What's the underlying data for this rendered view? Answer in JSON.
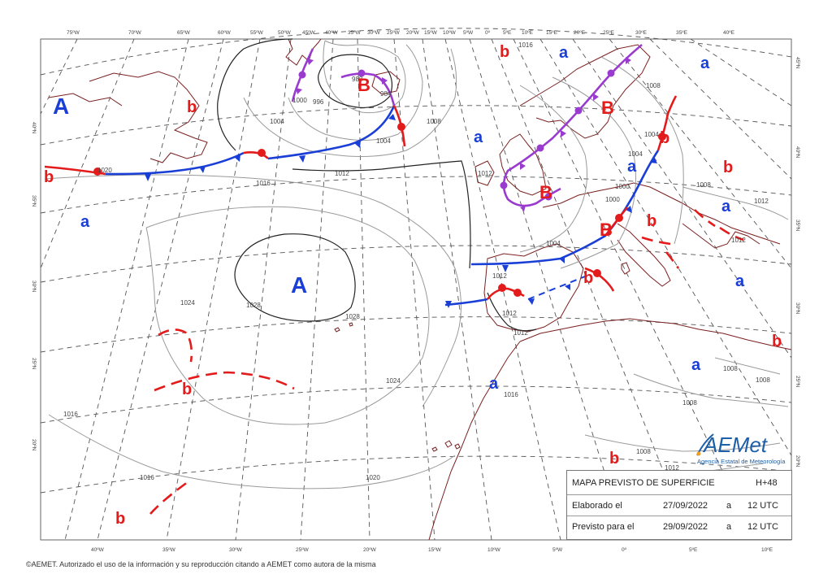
{
  "colors": {
    "high": "#1a3fd6",
    "low": "#e31b1b",
    "cold_front": "#1a3fd6",
    "warm_front": "#e31b1b",
    "occluded": "#9a3bd0",
    "coast": "#7a2020",
    "isobar": "#9a9a9a",
    "isobar_main": "#222222",
    "grid": "#444444"
  },
  "top_lon_labels": [
    "75ºW",
    "70ºW",
    "65ºW",
    "60ºW",
    "55ºW",
    "50ºW",
    "45ºW",
    "40ºW",
    "35ºW",
    "30ºW",
    "25ºW",
    "20ºW",
    "15ºW",
    "10ºW",
    "5ºW",
    "0º",
    "5ºE",
    "10ºE",
    "15ºE",
    "20ºE",
    "25ºE",
    "30ºE",
    "35ºE",
    "40ºE"
  ],
  "bottom_lon_labels": [
    "40ºW",
    "35ºW",
    "30ºW",
    "25ºW",
    "20ºW",
    "15ºW",
    "10ºW",
    "5ºW",
    "0º",
    "5ºE",
    "10ºE"
  ],
  "left_lat_labels": [
    "40ºN",
    "35ºN",
    "30ºN",
    "25ºN",
    "20ºN"
  ],
  "right_lat_labels": [
    "45ºN",
    "40ºN",
    "35ºN",
    "30ºN",
    "25ºN",
    "20ºN"
  ],
  "pressure_centers": [
    {
      "kind": "A",
      "type": "high",
      "size": "large"
    },
    {
      "kind": "A",
      "type": "high",
      "size": "large"
    },
    {
      "kind": "B",
      "type": "low",
      "size": "large"
    },
    {
      "kind": "B",
      "type": "low",
      "size": "large"
    },
    {
      "kind": "B",
      "type": "low",
      "size": "large"
    },
    {
      "kind": "B",
      "type": "low",
      "size": "large"
    },
    {
      "kind": "b",
      "type": "low",
      "size": "small"
    },
    {
      "kind": "b",
      "type": "low",
      "size": "small"
    },
    {
      "kind": "b",
      "type": "low",
      "size": "small"
    },
    {
      "kind": "b",
      "type": "low",
      "size": "small"
    },
    {
      "kind": "b",
      "type": "low",
      "size": "small"
    },
    {
      "kind": "b",
      "type": "low",
      "size": "small"
    },
    {
      "kind": "b",
      "type": "low",
      "size": "small"
    },
    {
      "kind": "b",
      "type": "low",
      "size": "small"
    },
    {
      "kind": "b",
      "type": "low",
      "size": "small"
    },
    {
      "kind": "b",
      "type": "low",
      "size": "small"
    },
    {
      "kind": "b",
      "type": "low",
      "size": "small"
    },
    {
      "kind": "a",
      "type": "high",
      "size": "small"
    },
    {
      "kind": "a",
      "type": "high",
      "size": "small"
    },
    {
      "kind": "a",
      "type": "high",
      "size": "small"
    },
    {
      "kind": "a",
      "type": "high",
      "size": "small"
    },
    {
      "kind": "a",
      "type": "high",
      "size": "small"
    },
    {
      "kind": "a",
      "type": "high",
      "size": "small"
    },
    {
      "kind": "a",
      "type": "high",
      "size": "small"
    },
    {
      "kind": "a",
      "type": "high",
      "size": "small"
    },
    {
      "kind": "a",
      "type": "high",
      "size": "small"
    }
  ],
  "isobar_labels": [
    "1028",
    "1028",
    "1020",
    "1016",
    "1016",
    "1024",
    "1024",
    "1016",
    "1020",
    "1016",
    "1012",
    "1012",
    "1012",
    "1012",
    "1012",
    "1004",
    "1008",
    "1004",
    "1000",
    "996",
    "988",
    "984",
    "1004",
    "1000",
    "1008",
    "1004",
    "1004",
    "1000",
    "1008",
    "1012",
    "1012",
    "1008",
    "1008",
    "1008",
    "1008",
    "1012",
    "1016"
  ],
  "legend": {
    "title": "MAPA PREVISTO DE SUPERFICIE",
    "horizon": "H+48",
    "row2_label": "Elaborado el",
    "row2_date": "27/09/2022",
    "row2_a": "a",
    "row2_time": "12 UTC",
    "row3_label": "Previsto para el",
    "row3_date": "29/09/2022",
    "row3_a": "a",
    "row3_time": "12 UTC"
  },
  "logo": {
    "name": "AEMet",
    "subtitle": "Agencia Estatal de Meteorología"
  },
  "copyright": "©AEMET. Autorizado el uso de la información y su reproducción citando a AEMET como autora de la misma"
}
